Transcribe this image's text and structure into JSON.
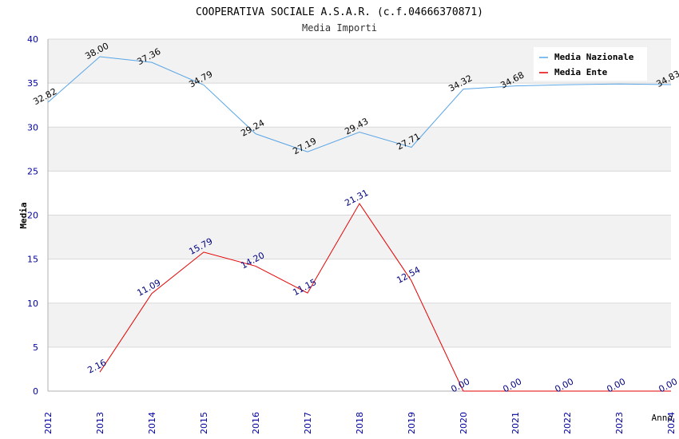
{
  "chart_data": {
    "type": "line",
    "title": "COOPERATIVA SOCIALE A.S.A.R. (c.f.04666370871)",
    "subtitle": "Media Importi",
    "xlabel": "Anno",
    "ylabel": "Media",
    "x": [
      "2012",
      "2013",
      "2014",
      "2015",
      "2016",
      "2017",
      "2018",
      "2019",
      "2020",
      "2021",
      "2022",
      "2023",
      "2024"
    ],
    "yticks": [
      "0",
      "5",
      "10",
      "15",
      "20",
      "25",
      "30",
      "35",
      "40"
    ],
    "ylim": [
      0,
      40
    ],
    "grid": true,
    "legend_position": "top-right",
    "series": [
      {
        "name": "Media Nazionale",
        "color": "#5aa5e6",
        "label_color": "#000000",
        "x": [
          "2012",
          "2013",
          "2014",
          "2015",
          "2016",
          "2017",
          "2018",
          "2019",
          "2020",
          "2021",
          "2022",
          "2023",
          "2024"
        ],
        "values": [
          32.82,
          38.0,
          37.36,
          34.79,
          29.24,
          27.19,
          29.43,
          27.71,
          34.32,
          34.68,
          34.82,
          34.9,
          34.83
        ],
        "labels": [
          "32.82",
          "38.00",
          "37.36",
          "34.79",
          "29.24",
          "27.19",
          "29.43",
          "27.71",
          "34.32",
          "34.68",
          null,
          null,
          "34.83"
        ]
      },
      {
        "name": "Media Ente",
        "color": "#e60000",
        "label_color": "#000080",
        "x": [
          "2013",
          "2014",
          "2015",
          "2016",
          "2017",
          "2018",
          "2019",
          "2020",
          "2021",
          "2022",
          "2023",
          "2024"
        ],
        "values": [
          2.16,
          11.09,
          15.79,
          14.2,
          11.15,
          21.31,
          12.54,
          0.0,
          0.0,
          0.0,
          0.0,
          0.0
        ],
        "labels": [
          "2.16",
          "11.09",
          "15.79",
          "14.20",
          "11.15",
          "21.31",
          "12.54",
          "0.00",
          "0.00",
          "0.00",
          "0.00",
          "0.00"
        ]
      }
    ]
  },
  "colors": {
    "band_fill": "#f2f2f2",
    "grid": "#d8d8d8",
    "axis": "#b0b0b0",
    "tick_label": "#0000a0",
    "title": "#000000",
    "subtitle": "#333333"
  }
}
